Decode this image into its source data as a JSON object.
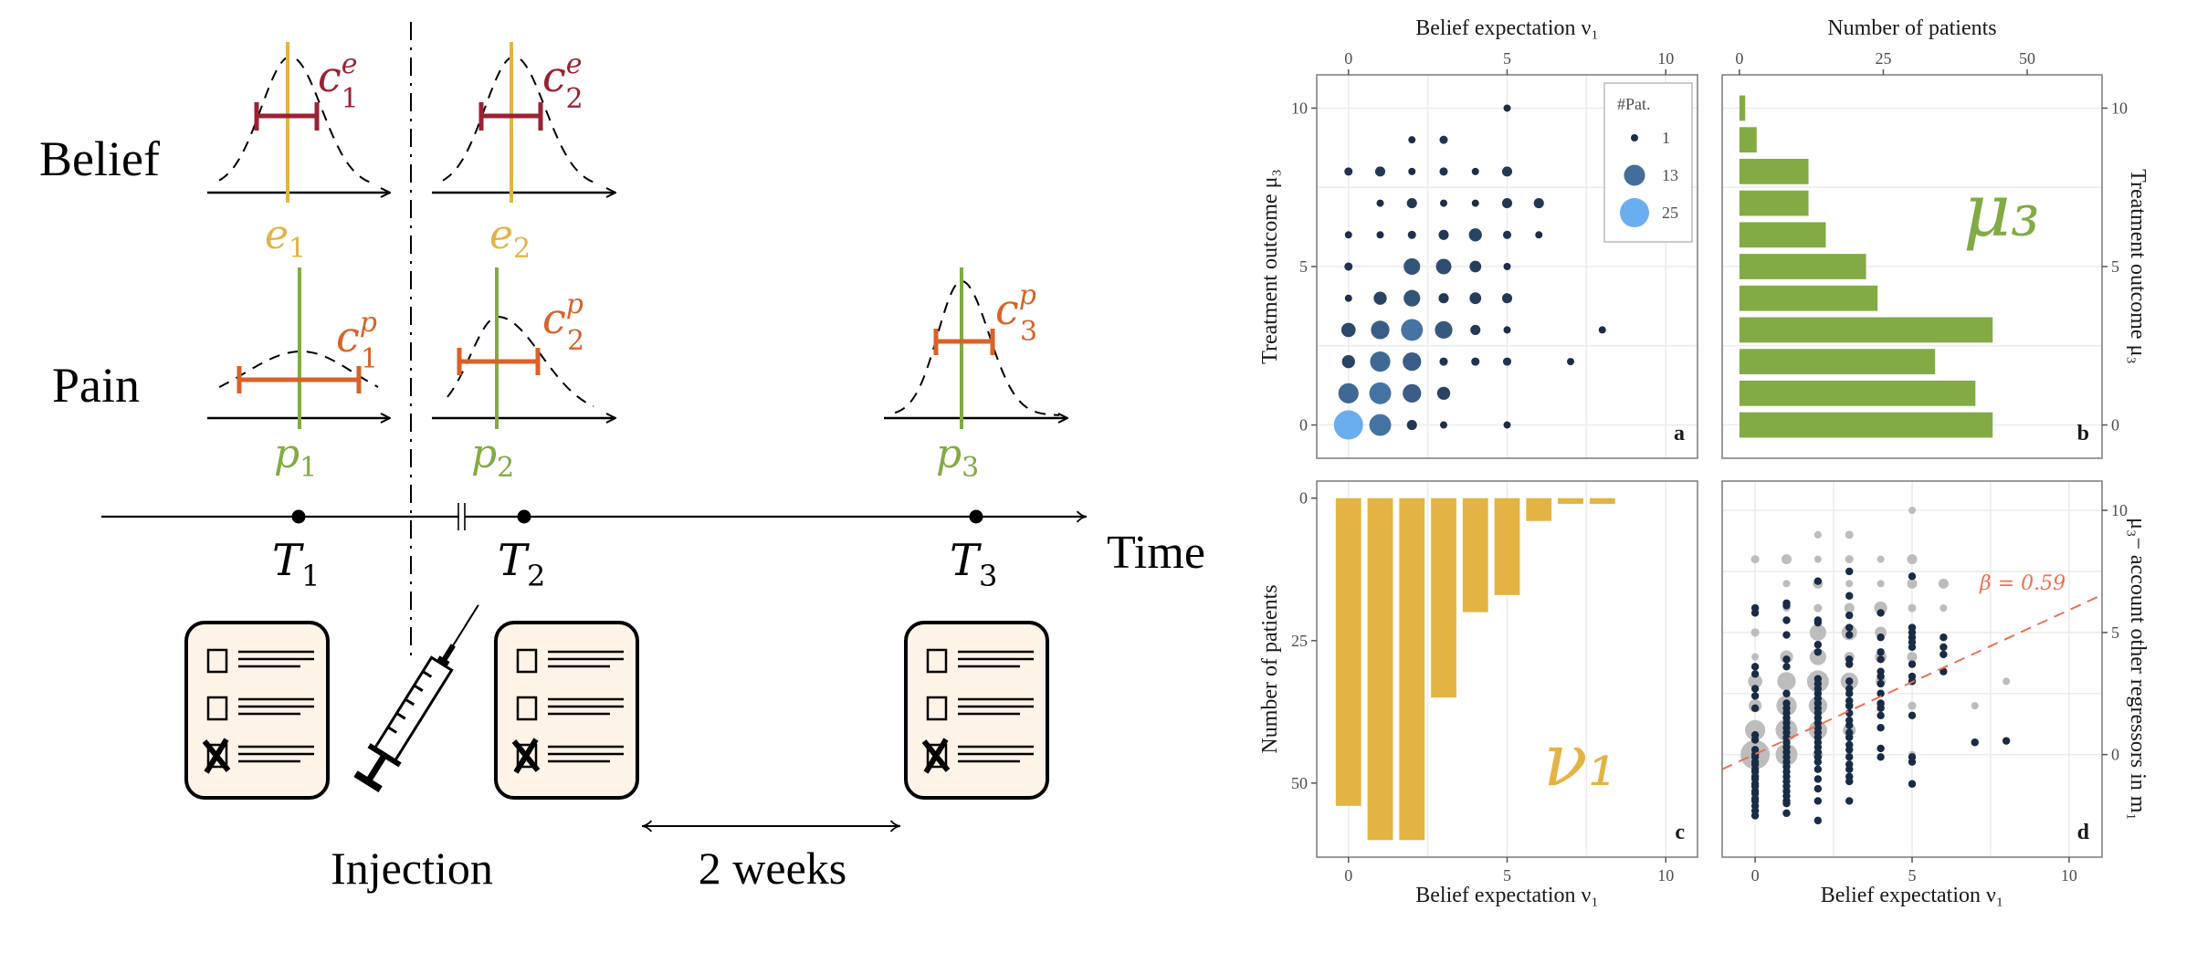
{
  "diagram": {
    "row_labels": {
      "belief": "Belief",
      "pain": "Pain"
    },
    "belief_labels": [
      {
        "base": "c",
        "sub": "1",
        "sup": "e"
      },
      {
        "base": "c",
        "sub": "2",
        "sup": "e"
      }
    ],
    "expectation_labels": [
      {
        "base": "e",
        "sub": "1"
      },
      {
        "base": "e",
        "sub": "2"
      }
    ],
    "pain_confidence_labels": [
      {
        "base": "c",
        "sub": "1",
        "sup": "p"
      },
      {
        "base": "c",
        "sub": "2",
        "sup": "p"
      },
      {
        "base": "c",
        "sub": "3",
        "sup": "p"
      }
    ],
    "pain_labels": [
      {
        "base": "p",
        "sub": "1"
      },
      {
        "base": "p",
        "sub": "2"
      },
      {
        "base": "p",
        "sub": "3"
      }
    ],
    "timepoints": [
      {
        "base": "T",
        "sub": "1"
      },
      {
        "base": "T",
        "sub": "2"
      },
      {
        "base": "T",
        "sub": "3"
      }
    ],
    "time_label": "Time",
    "injection_label": "Injection",
    "interval_label": "2 weeks",
    "colors": {
      "expectation": "#e3b444",
      "belief_confidence": "#9a2233",
      "pain": "#82ab45",
      "pain_confidence": "#d9622a",
      "questionnaire_fill": "#fdf3e6"
    },
    "icons": [
      "questionnaire-icon",
      "syringe-icon",
      "checkbox-icon",
      "checked-box-icon"
    ]
  },
  "chart_data": [
    {
      "panel": "a",
      "type": "scatter",
      "xlabel": "Belief expectation ν₁",
      "ylabel": "Treatment outcome μ₃",
      "xlim": [
        -1,
        11
      ],
      "ylim": [
        -1.05,
        11.05
      ],
      "xticks": [
        0,
        5,
        10
      ],
      "yticks": [
        0,
        5,
        10
      ],
      "grid": true,
      "legend": {
        "title": "#Pat.",
        "entries": [
          1,
          13,
          25
        ],
        "placement": "top-right"
      },
      "colors": {
        "low": "#1c2d47",
        "high": "#6aaef0"
      },
      "letter": "a",
      "points": [
        [
          5,
          10,
          1
        ],
        [
          2,
          9,
          1
        ],
        [
          3,
          9,
          2
        ],
        [
          0,
          8,
          2
        ],
        [
          1,
          8,
          3
        ],
        [
          2,
          8,
          1
        ],
        [
          3,
          8,
          2
        ],
        [
          4,
          8,
          1
        ],
        [
          5,
          8,
          3
        ],
        [
          1,
          7,
          1
        ],
        [
          2,
          7,
          3
        ],
        [
          3,
          7,
          1
        ],
        [
          4,
          7,
          1
        ],
        [
          5,
          7,
          3
        ],
        [
          6,
          7,
          3
        ],
        [
          0,
          6,
          1
        ],
        [
          1,
          6,
          1
        ],
        [
          2,
          6,
          2
        ],
        [
          3,
          6,
          3
        ],
        [
          4,
          6,
          5
        ],
        [
          5,
          6,
          2
        ],
        [
          6,
          6,
          1
        ],
        [
          0,
          5,
          2
        ],
        [
          2,
          5,
          8
        ],
        [
          3,
          5,
          7
        ],
        [
          4,
          5,
          4
        ],
        [
          5,
          5,
          1
        ],
        [
          0,
          4,
          1
        ],
        [
          1,
          4,
          5
        ],
        [
          2,
          4,
          8
        ],
        [
          3,
          4,
          3
        ],
        [
          4,
          4,
          4
        ],
        [
          5,
          4,
          3
        ],
        [
          0,
          3,
          6
        ],
        [
          1,
          3,
          10
        ],
        [
          2,
          3,
          14
        ],
        [
          3,
          3,
          9
        ],
        [
          4,
          3,
          3
        ],
        [
          5,
          3,
          1
        ],
        [
          8,
          3,
          1
        ],
        [
          0,
          2,
          5
        ],
        [
          1,
          2,
          12
        ],
        [
          2,
          2,
          10
        ],
        [
          3,
          2,
          2
        ],
        [
          4,
          2,
          2
        ],
        [
          5,
          2,
          2
        ],
        [
          7,
          2,
          1
        ],
        [
          0,
          1,
          12
        ],
        [
          1,
          1,
          14
        ],
        [
          2,
          1,
          10
        ],
        [
          3,
          1,
          5
        ],
        [
          0,
          0,
          25
        ],
        [
          1,
          0,
          14
        ],
        [
          2,
          0,
          3
        ],
        [
          3,
          0,
          1
        ],
        [
          5,
          0,
          1
        ]
      ]
    },
    {
      "panel": "b",
      "type": "bar",
      "orientation": "horizontal",
      "xlabel": "Number of patients",
      "ylabel": "Treatment outcome μ₃",
      "xlim": [
        -3,
        63
      ],
      "ylim": [
        -1.05,
        11.05
      ],
      "xticks": [
        0,
        25,
        50
      ],
      "yticks": [
        0,
        5,
        10
      ],
      "grid": true,
      "categories": [
        0,
        1,
        2,
        3,
        4,
        5,
        6,
        7,
        8,
        9,
        10
      ],
      "values": [
        44,
        41,
        34,
        44,
        24,
        22,
        15,
        12,
        12,
        3,
        1
      ],
      "annotation": "μ₃",
      "color": "#82ab45",
      "letter": "b"
    },
    {
      "panel": "c",
      "type": "bar",
      "orientation": "vertical-reversed",
      "xlabel": "Belief expectation ν₁",
      "ylabel": "Number of patients",
      "xlim": [
        -1,
        11
      ],
      "ylim": [
        63,
        -3
      ],
      "xticks": [
        0,
        5,
        10
      ],
      "yticks": [
        0,
        25,
        50
      ],
      "grid": true,
      "categories": [
        0,
        1,
        2,
        3,
        4,
        5,
        6,
        7,
        8
      ],
      "values": [
        54,
        60,
        60,
        35,
        20,
        17,
        4,
        1,
        1
      ],
      "annotation": "ν₁",
      "color": "#e3b444",
      "letter": "c"
    },
    {
      "panel": "d",
      "type": "scatter",
      "xlabel": "Belief expectation ν₁",
      "ylabel": "μ₃− account other regressors in m₁",
      "xlim": [
        -1.05,
        11.05
      ],
      "ylim": [
        -4.2,
        11.2
      ],
      "xticks": [
        0,
        5,
        10
      ],
      "yticks": [
        0,
        5,
        10
      ],
      "grid": true,
      "background_points_color": "#bdbdbd",
      "residual_color": "#1a2b45",
      "residual_points": [
        {
          "x": 0,
          "y": [
            6.0,
            5.8,
            3.6,
            3.3,
            2.7,
            2.4,
            1.9,
            0.8,
            0.6,
            0.2,
            0.0,
            -0.1,
            -0.3,
            -0.4,
            -0.6,
            -0.7,
            -0.9,
            -1.0,
            -1.2,
            -1.3,
            -1.5,
            -1.6,
            -1.8,
            -1.9,
            -2.1,
            -2.3,
            -2.5
          ]
        },
        {
          "x": 1,
          "y": [
            6.2,
            6.1,
            5.5,
            4.9,
            3.9,
            3.6,
            2.5,
            2.1,
            1.9,
            1.7,
            1.5,
            1.3,
            1.1,
            0.9,
            0.7,
            0.5,
            0.3,
            0.1,
            -0.1,
            -0.3,
            -0.5,
            -0.7,
            -0.9,
            -1.1,
            -1.3,
            -1.5,
            -1.7,
            -1.9,
            -2.0,
            -2.4
          ]
        },
        {
          "x": 2,
          "y": [
            7.1,
            5.5,
            5.4,
            4.5,
            4.2,
            3.1,
            2.9,
            2.7,
            2.5,
            2.3,
            2.1,
            1.9,
            1.7,
            1.5,
            1.3,
            1.1,
            0.9,
            0.7,
            0.5,
            0.3,
            0.1,
            -0.1,
            -0.3,
            -0.6,
            -1.0,
            -1.4,
            -1.9,
            -2.7
          ]
        },
        {
          "x": 3,
          "y": [
            7.5,
            6.5,
            5.7,
            5.2,
            4.9,
            3.9,
            3.7,
            3.0,
            2.7,
            2.5,
            2.2,
            2.0,
            1.7,
            1.4,
            1.2,
            0.9,
            0.7,
            0.4,
            0.2,
            -0.1,
            -0.4,
            -0.6,
            -0.9,
            -1.1,
            -1.9
          ]
        },
        {
          "x": 4,
          "y": [
            5.8,
            4.8,
            4.2,
            3.9,
            3.4,
            3.2,
            2.9,
            2.5,
            2.1,
            1.9,
            1.6,
            1.1,
            0.25,
            -0.1
          ]
        },
        {
          "x": 5,
          "y": [
            7.3,
            5.2,
            5.0,
            4.8,
            4.6,
            4.4,
            3.7,
            3.2,
            3.0,
            1.6,
            -0.1,
            -0.3,
            -1.2
          ]
        },
        {
          "x": 6,
          "y": [
            4.8,
            4.4,
            4.1,
            3.4
          ]
        },
        {
          "x": 7,
          "y": [
            0.5
          ]
        },
        {
          "x": 8,
          "y": [
            0.56
          ]
        }
      ],
      "fit": {
        "slope": 0.59,
        "intercept": 0.02,
        "label": "β = 0.59",
        "color": "#f07050"
      },
      "letter": "d"
    }
  ]
}
